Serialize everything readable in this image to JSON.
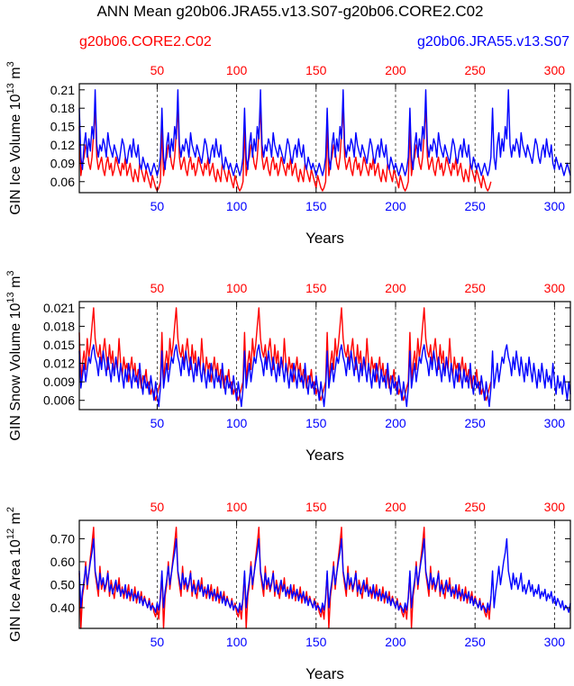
{
  "title": "ANN Mean g20b06.JRA55.v13.S07-g20b06.CORE2.C02",
  "legend": {
    "red_label": "g20b06.CORE2.C02",
    "blue_label": "g20b06.JRA55.v13.S07"
  },
  "colors": {
    "red": "#ff0000",
    "blue": "#0000ff",
    "axis": "#000000"
  },
  "chart_data": [
    {
      "type": "line",
      "id": "ice-volume",
      "ylabel": "GIN Ice Volume 10",
      "ylabel_exp": "13",
      "ylabel_unit": " m",
      "ylabel_unit_exp": "3",
      "xlabel": "Years",
      "xlim": [
        1,
        310
      ],
      "ylim": [
        0.042,
        0.22
      ],
      "yticks": [
        0.06,
        0.09,
        0.12,
        0.15,
        0.18,
        0.21
      ],
      "ytick_labels": [
        "0.06",
        "0.09",
        "0.12",
        "0.15",
        "0.18",
        "0.21"
      ],
      "xticks": [
        50,
        100,
        150,
        200,
        250,
        300
      ],
      "xtick_labels": [
        "50",
        "100",
        "150",
        "200",
        "250",
        "300"
      ],
      "gridlines_x": [
        50,
        100,
        150,
        200,
        250,
        300
      ],
      "series": [
        {
          "name": "g20b06.CORE2.C02",
          "color": "red",
          "cycle_len": 52,
          "n_cycles": 5,
          "cycle": [
            0.15,
            0.07,
            0.09,
            0.1,
            0.12,
            0.11,
            0.09,
            0.08,
            0.1,
            0.14,
            0.18,
            0.1,
            0.08,
            0.09,
            0.1,
            0.08,
            0.07,
            0.09,
            0.1,
            0.08,
            0.09,
            0.07,
            0.08,
            0.1,
            0.09,
            0.08,
            0.07,
            0.09,
            0.08,
            0.1,
            0.07,
            0.08,
            0.09,
            0.07,
            0.06,
            0.08,
            0.07,
            0.06,
            0.09,
            0.08,
            0.07,
            0.06,
            0.08,
            0.07,
            0.06,
            0.05,
            0.07,
            0.06,
            0.05,
            0.045,
            0.05,
            0.06
          ]
        },
        {
          "name": "g20b06.JRA55.v13.S07",
          "color": "blue",
          "cycle_len": 52,
          "n_cycles": 6,
          "cycle": [
            0.18,
            0.1,
            0.08,
            0.12,
            0.14,
            0.1,
            0.13,
            0.11,
            0.15,
            0.13,
            0.21,
            0.12,
            0.1,
            0.12,
            0.11,
            0.13,
            0.12,
            0.1,
            0.14,
            0.12,
            0.11,
            0.1,
            0.12,
            0.11,
            0.1,
            0.09,
            0.11,
            0.13,
            0.12,
            0.1,
            0.09,
            0.11,
            0.12,
            0.1,
            0.13,
            0.11,
            0.1,
            0.12,
            0.09,
            0.08,
            0.1,
            0.09,
            0.08,
            0.09,
            0.08,
            0.07,
            0.08,
            0.09,
            0.08,
            0.07,
            0.08,
            0.1
          ]
        }
      ]
    },
    {
      "type": "line",
      "id": "snow-volume",
      "ylabel": "GIN Snow Volume 10",
      "ylabel_exp": "13",
      "ylabel_unit": " m",
      "ylabel_unit_exp": "3",
      "xlabel": "Years",
      "xlim": [
        1,
        310
      ],
      "ylim": [
        0.0045,
        0.022
      ],
      "yticks": [
        0.006,
        0.009,
        0.012,
        0.015,
        0.018,
        0.021
      ],
      "ytick_labels": [
        "0.006",
        "0.009",
        "0.012",
        "0.015",
        "0.018",
        "0.021"
      ],
      "xticks": [
        50,
        100,
        150,
        200,
        250,
        300
      ],
      "xtick_labels": [
        "50",
        "100",
        "150",
        "200",
        "250",
        "300"
      ],
      "gridlines_x": [
        50,
        100,
        150,
        200,
        250,
        300
      ],
      "series": [
        {
          "name": "g20b06.CORE2.C02",
          "color": "red",
          "cycle_len": 52,
          "n_cycles": 5,
          "cycle": [
            0.017,
            0.009,
            0.012,
            0.014,
            0.011,
            0.016,
            0.013,
            0.015,
            0.018,
            0.021,
            0.016,
            0.014,
            0.013,
            0.015,
            0.012,
            0.014,
            0.016,
            0.013,
            0.011,
            0.015,
            0.012,
            0.014,
            0.01,
            0.013,
            0.011,
            0.016,
            0.012,
            0.01,
            0.013,
            0.011,
            0.012,
            0.009,
            0.011,
            0.013,
            0.01,
            0.012,
            0.009,
            0.011,
            0.01,
            0.008,
            0.01,
            0.009,
            0.011,
            0.008,
            0.009,
            0.007,
            0.008,
            0.007,
            0.006,
            0.007,
            0.008,
            0.009
          ]
        },
        {
          "name": "g20b06.JRA55.v13.S07",
          "color": "blue",
          "cycle_len": 52,
          "n_cycles": 6,
          "cycle": [
            0.014,
            0.008,
            0.01,
            0.012,
            0.009,
            0.011,
            0.013,
            0.012,
            0.014,
            0.015,
            0.013,
            0.012,
            0.01,
            0.013,
            0.011,
            0.014,
            0.012,
            0.01,
            0.013,
            0.011,
            0.009,
            0.012,
            0.01,
            0.013,
            0.011,
            0.009,
            0.012,
            0.01,
            0.008,
            0.011,
            0.009,
            0.012,
            0.01,
            0.008,
            0.011,
            0.009,
            0.01,
            0.008,
            0.012,
            0.009,
            0.007,
            0.01,
            0.008,
            0.009,
            0.007,
            0.01,
            0.008,
            0.006,
            0.009,
            0.007,
            0.005,
            0.008
          ]
        }
      ]
    },
    {
      "type": "line",
      "id": "ice-area",
      "ylabel": "GIN Ice Area 10",
      "ylabel_exp": "12",
      "ylabel_unit": " m",
      "ylabel_unit_exp": "2",
      "xlabel": "Years",
      "xlim": [
        1,
        310
      ],
      "ylim": [
        0.31,
        0.78
      ],
      "yticks": [
        0.4,
        0.5,
        0.6,
        0.7
      ],
      "ytick_labels": [
        "0.40",
        "0.50",
        "0.60",
        "0.70"
      ],
      "xticks": [
        50,
        100,
        150,
        200,
        250,
        300
      ],
      "xtick_labels": [
        "50",
        "100",
        "150",
        "200",
        "250",
        "300"
      ],
      "gridlines_x": [
        50,
        100,
        150,
        200,
        250,
        300
      ],
      "series": [
        {
          "name": "g20b06.CORE2.C02",
          "color": "red",
          "cycle_len": 52,
          "n_cycles": 5,
          "cycle": [
            0.55,
            0.31,
            0.45,
            0.5,
            0.6,
            0.48,
            0.55,
            0.62,
            0.68,
            0.75,
            0.55,
            0.5,
            0.45,
            0.58,
            0.48,
            0.52,
            0.47,
            0.5,
            0.56,
            0.45,
            0.52,
            0.48,
            0.44,
            0.5,
            0.47,
            0.53,
            0.45,
            0.49,
            0.44,
            0.48,
            0.46,
            0.5,
            0.43,
            0.47,
            0.44,
            0.49,
            0.42,
            0.46,
            0.43,
            0.47,
            0.41,
            0.45,
            0.42,
            0.4,
            0.44,
            0.39,
            0.42,
            0.38,
            0.36,
            0.4,
            0.35,
            0.45
          ]
        },
        {
          "name": "g20b06.JRA55.v13.S07",
          "color": "blue",
          "cycle_len": 52,
          "n_cycles": 6,
          "cycle": [
            0.56,
            0.4,
            0.47,
            0.52,
            0.58,
            0.5,
            0.55,
            0.6,
            0.64,
            0.7,
            0.56,
            0.52,
            0.48,
            0.55,
            0.5,
            0.53,
            0.48,
            0.51,
            0.55,
            0.47,
            0.5,
            0.46,
            0.49,
            0.52,
            0.47,
            0.5,
            0.45,
            0.48,
            0.46,
            0.5,
            0.44,
            0.47,
            0.45,
            0.48,
            0.43,
            0.46,
            0.44,
            0.47,
            0.42,
            0.45,
            0.41,
            0.44,
            0.42,
            0.4,
            0.43,
            0.39,
            0.41,
            0.4,
            0.38,
            0.42,
            0.39,
            0.44
          ]
        }
      ]
    }
  ]
}
